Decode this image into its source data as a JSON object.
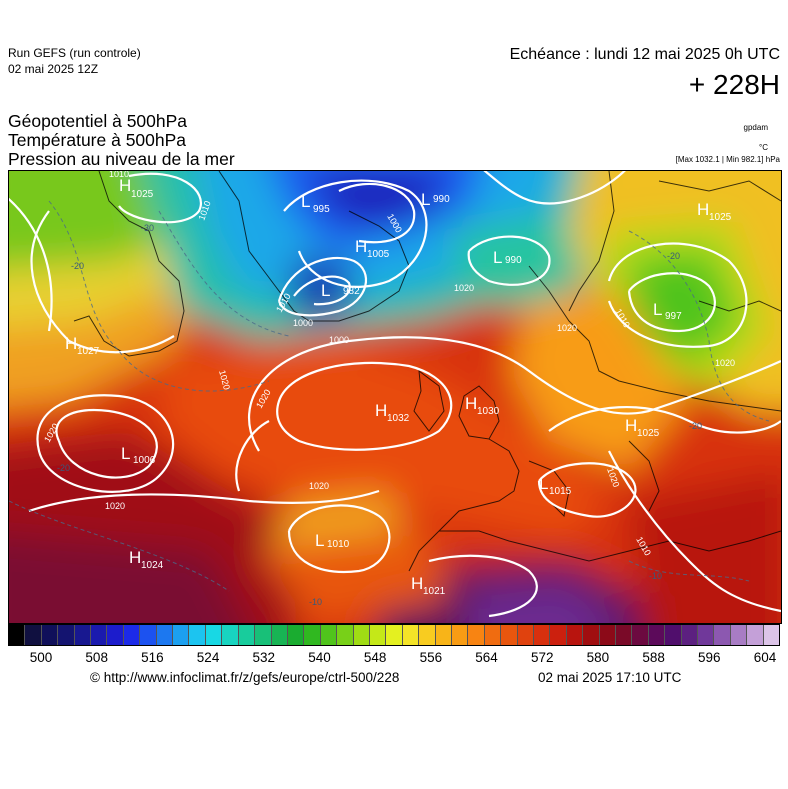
{
  "header": {
    "run_label": "Run GEFS (run controle)",
    "run_date": "02 mai 2025 12Z",
    "echeance": "Echéance : lundi 12 mai 2025 0h UTC",
    "lead": "+ 228H"
  },
  "params": {
    "line1": "Géopotentiel à 500hPa",
    "line2": "Température à 500hPa",
    "line3": "Pression au niveau de la mer",
    "unit_geopotential": "gpdam",
    "unit_temperature": "°C",
    "minmax": "[Max 1032.1 | Min 982.1] hPa"
  },
  "map": {
    "pressure_centers": [
      {
        "type": "H",
        "value": "1025"
      },
      {
        "type": "L",
        "value": "995"
      },
      {
        "type": "L",
        "value": "990"
      },
      {
        "type": "H",
        "value": "1005"
      },
      {
        "type": "L",
        "value": "982"
      },
      {
        "type": "L",
        "value": "990"
      },
      {
        "type": "H",
        "value": "1025"
      },
      {
        "type": "L",
        "value": "997"
      },
      {
        "type": "H",
        "value": "1027"
      },
      {
        "type": "H",
        "value": "1032"
      },
      {
        "type": "H",
        "value": "1030"
      },
      {
        "type": "H",
        "value": "1025"
      },
      {
        "type": "L",
        "value": "1006"
      },
      {
        "type": "L",
        "value": "1015"
      },
      {
        "type": "L",
        "value": "1010"
      },
      {
        "type": "H",
        "value": "1024"
      },
      {
        "type": "H",
        "value": "1021"
      }
    ],
    "isobar_labels": [
      "1010",
      "1000",
      "1000",
      "1000",
      "1020",
      "1020",
      "1020",
      "1020",
      "1020",
      "1020",
      "1020",
      "1020",
      "1010",
      "1010",
      "1010",
      "1010",
      "1020"
    ],
    "temperature_labels": [
      "-30",
      "-20",
      "-20",
      "-20",
      "-20",
      "-10",
      "-10"
    ]
  },
  "colorbar": {
    "colors": [
      "#000000",
      "#101040",
      "#10105a",
      "#141470",
      "#181890",
      "#1a1aae",
      "#1c1ccc",
      "#1c2ae8",
      "#1c52f0",
      "#1c78f0",
      "#1ca0f0",
      "#1cc4f0",
      "#18d8e4",
      "#18d4c0",
      "#18cc9c",
      "#18c078",
      "#18b454",
      "#1aac30",
      "#30b820",
      "#50c41c",
      "#78d018",
      "#a0dc14",
      "#c4e818",
      "#e4f020",
      "#f4e428",
      "#f8cc20",
      "#f8b418",
      "#f89c14",
      "#f88412",
      "#f06c10",
      "#e8560e",
      "#e0420e",
      "#d8300e",
      "#cc200e",
      "#b8140e",
      "#a00e10",
      "#8c0a18",
      "#7a0a28",
      "#6c0a40",
      "#5c0a5a",
      "#500e6c",
      "#5c2080",
      "#70389a",
      "#8c58b0",
      "#a87cc4",
      "#c4a0d8",
      "#dcc4e8"
    ],
    "ticks": [
      "500",
      "508",
      "516",
      "524",
      "532",
      "540",
      "548",
      "556",
      "564",
      "572",
      "580",
      "588",
      "596",
      "604"
    ]
  },
  "footer": {
    "source": "© http://www.infoclimat.fr/z/gefs/europe/ctrl-500/228",
    "generated": "02 mai 2025 17:10 UTC"
  }
}
